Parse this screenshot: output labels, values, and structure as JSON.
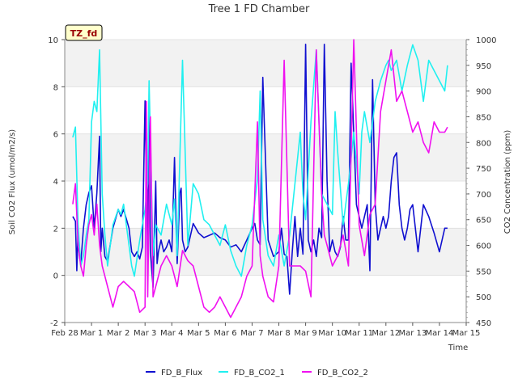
{
  "chart_data": {
    "type": "line",
    "title": "Tree 1 FD Chamber",
    "xlabel": "Time",
    "ylabel": "Soil CO2 Flux (umol/m2/s)",
    "y2label": "CO2 Concentration (ppm)",
    "tag": "TZ_fd",
    "x_ticks": [
      "Feb 28",
      "Mar 1",
      "Mar 2",
      "Mar 3",
      "Mar 4",
      "Mar 5",
      "Mar 6",
      "Mar 7",
      "Mar 8",
      "Mar 9",
      "Mar 10",
      "Mar 11",
      "Mar 12",
      "Mar 13",
      "Mar 14",
      "Mar 15"
    ],
    "xlim": [
      0,
      15
    ],
    "ylim": [
      -2,
      10
    ],
    "y_ticks": [
      -2,
      0,
      2,
      4,
      6,
      8,
      10
    ],
    "y2lim": [
      450,
      1000
    ],
    "y2_ticks": [
      450,
      500,
      550,
      600,
      650,
      700,
      750,
      800,
      850,
      900,
      950,
      1000
    ],
    "grid": "horizontal bands",
    "legend_position": "bottom-center",
    "colors": {
      "FD_B_Flux": "#1010d0",
      "FD_B_CO2_1": "#20f0f0",
      "FD_B_CO2_2": "#f010f0",
      "band": "#f2f2f2",
      "tag_bg": "#ffffcc"
    },
    "series": [
      {
        "name": "FD_B_Flux",
        "axis": "left",
        "x": [
          0.3,
          0.4,
          0.45,
          0.5,
          0.55,
          0.6,
          0.7,
          0.8,
          0.9,
          1.0,
          1.1,
          1.2,
          1.3,
          1.35,
          1.4,
          1.5,
          1.6,
          1.8,
          2.0,
          2.1,
          2.2,
          2.4,
          2.5,
          2.6,
          2.7,
          2.8,
          2.9,
          3.0,
          3.1,
          3.15,
          3.2,
          3.3,
          3.4,
          3.45,
          3.5,
          3.6,
          3.7,
          3.8,
          3.9,
          4.0,
          4.1,
          4.2,
          4.3,
          4.35,
          4.4,
          4.5,
          4.6,
          4.8,
          5.0,
          5.2,
          5.4,
          5.6,
          5.8,
          6.0,
          6.2,
          6.4,
          6.6,
          6.8,
          7.0,
          7.1,
          7.2,
          7.3,
          7.4,
          7.6,
          7.8,
          8.0,
          8.1,
          8.2,
          8.3,
          8.4,
          8.5,
          8.6,
          8.7,
          8.8,
          8.9,
          9.0,
          9.1,
          9.2,
          9.3,
          9.4,
          9.5,
          9.6,
          9.7,
          9.8,
          9.9,
          10.0,
          10.1,
          10.2,
          10.3,
          10.4,
          10.5,
          10.6,
          10.7,
          10.8,
          10.9,
          11.0,
          11.1,
          11.2,
          11.3,
          11.4,
          11.5,
          11.6,
          11.7,
          11.8,
          11.9,
          12.0,
          12.1,
          12.2,
          12.3,
          12.4,
          12.5,
          12.6,
          12.7,
          12.8,
          12.9,
          13.0,
          13.2,
          13.4,
          13.6,
          13.8,
          14.0,
          14.2,
          14.3
        ],
        "values": [
          2.5,
          2.3,
          0.2,
          2.0,
          0.8,
          0.5,
          2.0,
          3.0,
          3.5,
          3.8,
          2.0,
          3.5,
          5.9,
          1.0,
          2.0,
          0.8,
          0.6,
          2.0,
          2.8,
          2.5,
          2.8,
          2.0,
          1.0,
          0.8,
          1.0,
          0.7,
          1.2,
          7.4,
          0.2,
          7.3,
          1.0,
          -0.5,
          4.0,
          0.5,
          1.0,
          1.5,
          1.0,
          1.2,
          1.5,
          1.0,
          5.0,
          0.5,
          3.5,
          3.7,
          1.5,
          1.0,
          1.2,
          2.2,
          1.8,
          1.6,
          1.7,
          1.8,
          1.6,
          1.5,
          1.2,
          1.3,
          1.0,
          1.5,
          2.0,
          2.2,
          1.5,
          1.3,
          8.4,
          1.5,
          0.8,
          1.0,
          2.0,
          0.9,
          0.8,
          -0.8,
          1.0,
          2.5,
          0.8,
          2.0,
          0.9,
          9.8,
          1.5,
          1.0,
          1.5,
          0.8,
          2.0,
          1.6,
          9.8,
          4.0,
          1.0,
          1.5,
          1.0,
          0.8,
          1.2,
          2.5,
          1.5,
          1.5,
          9.0,
          6.0,
          3.0,
          2.5,
          2.0,
          2.5,
          3.0,
          0.2,
          8.3,
          3.0,
          1.5,
          2.0,
          2.5,
          2.0,
          2.5,
          4.0,
          5.0,
          5.2,
          3.0,
          2.0,
          1.5,
          2.0,
          2.8,
          3.0,
          1.0,
          3.0,
          2.5,
          1.8,
          1.0,
          2.0,
          2.0
        ],
        "x_note": "days since Feb 28"
      },
      {
        "name": "FD_B_CO2_1",
        "axis": "right",
        "x": [
          0.3,
          0.4,
          0.5,
          0.6,
          0.7,
          0.8,
          0.9,
          1.0,
          1.1,
          1.2,
          1.3,
          1.4,
          1.5,
          1.6,
          1.8,
          2.0,
          2.1,
          2.2,
          2.4,
          2.5,
          2.6,
          2.8,
          3.0,
          3.1,
          3.15,
          3.3,
          3.4,
          3.6,
          3.8,
          4.0,
          4.1,
          4.2,
          4.4,
          4.6,
          4.8,
          5.0,
          5.2,
          5.4,
          5.6,
          5.8,
          6.0,
          6.2,
          6.4,
          6.6,
          6.8,
          7.0,
          7.2,
          7.3,
          7.4,
          7.6,
          7.8,
          8.0,
          8.2,
          8.4,
          8.6,
          8.8,
          8.9,
          9.0,
          9.2,
          9.4,
          9.6,
          9.8,
          10.0,
          10.1,
          10.2,
          10.4,
          10.6,
          10.8,
          11.0,
          11.1,
          11.2,
          11.4,
          11.6,
          11.8,
          12.0,
          12.1,
          12.2,
          12.4,
          12.6,
          12.8,
          13.0,
          13.2,
          13.4,
          13.6,
          13.8,
          14.0,
          14.2,
          14.3
        ],
        "values": [
          810,
          830,
          640,
          560,
          580,
          620,
          650,
          840,
          880,
          860,
          980,
          700,
          620,
          560,
          640,
          670,
          660,
          680,
          600,
          560,
          540,
          610,
          670,
          720,
          920,
          580,
          640,
          620,
          680,
          640,
          690,
          580,
          960,
          600,
          720,
          700,
          650,
          640,
          620,
          600,
          640,
          590,
          560,
          540,
          600,
          640,
          730,
          900,
          650,
          580,
          560,
          620,
          560,
          620,
          720,
          820,
          700,
          650,
          840,
          980,
          700,
          680,
          660,
          860,
          780,
          640,
          720,
          820,
          700,
          820,
          860,
          800,
          880,
          920,
          950,
          960,
          940,
          960,
          900,
          950,
          990,
          960,
          880,
          960,
          940,
          920,
          900,
          950
        ],
        "x_note": "days since Feb 28"
      },
      {
        "name": "FD_B_CO2_2",
        "axis": "right",
        "x": [
          0.3,
          0.4,
          0.5,
          0.6,
          0.7,
          0.8,
          0.9,
          1.0,
          1.1,
          1.2,
          1.3,
          1.4,
          1.5,
          1.6,
          1.8,
          2.0,
          2.2,
          2.4,
          2.6,
          2.8,
          3.0,
          3.05,
          3.1,
          3.2,
          3.3,
          3.4,
          3.6,
          3.8,
          4.0,
          4.2,
          4.4,
          4.6,
          4.8,
          5.0,
          5.2,
          5.4,
          5.6,
          5.8,
          6.0,
          6.2,
          6.4,
          6.6,
          6.8,
          7.0,
          7.2,
          7.3,
          7.4,
          7.6,
          7.8,
          8.0,
          8.2,
          8.4,
          8.6,
          8.8,
          9.0,
          9.2,
          9.4,
          9.6,
          9.7,
          9.8,
          10.0,
          10.2,
          10.4,
          10.6,
          10.8,
          11.0,
          11.2,
          11.4,
          11.6,
          11.8,
          12.0,
          12.2,
          12.4,
          12.6,
          12.8,
          13.0,
          13.2,
          13.4,
          13.6,
          13.8,
          14.0,
          14.2,
          14.3
        ],
        "values": [
          680,
          720,
          600,
          560,
          540,
          600,
          640,
          660,
          620,
          680,
          600,
          560,
          540,
          520,
          480,
          520,
          530,
          520,
          510,
          470,
          480,
          880,
          500,
          850,
          500,
          520,
          560,
          580,
          560,
          520,
          590,
          570,
          560,
          520,
          480,
          470,
          480,
          500,
          480,
          460,
          480,
          500,
          540,
          560,
          840,
          580,
          540,
          500,
          490,
          560,
          960,
          560,
          560,
          560,
          550,
          500,
          980,
          700,
          620,
          600,
          560,
          580,
          620,
          560,
          1000,
          640,
          580,
          660,
          680,
          860,
          920,
          980,
          880,
          900,
          860,
          820,
          840,
          800,
          780,
          840,
          820,
          820,
          830
        ],
        "x_note": "days since Feb 28"
      }
    ]
  }
}
